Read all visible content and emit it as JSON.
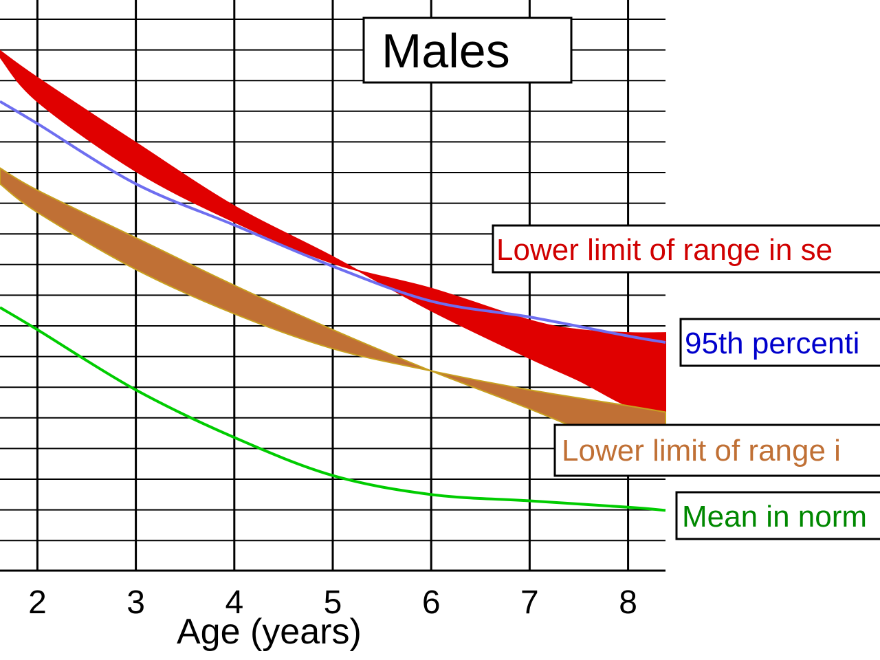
{
  "chart_data": {
    "type": "area",
    "title": "Males",
    "xlabel": "Age (years)",
    "ylabel": "",
    "xlim": [
      1.62,
      8.38
    ],
    "ylim": [
      0,
      18
    ],
    "x_ticks": [
      2,
      3,
      4,
      5,
      6,
      7,
      8
    ],
    "x_tick_labels": [
      "2",
      "3",
      "4",
      "5",
      "6",
      "7",
      "8"
    ],
    "grid": true,
    "bands": [
      {
        "name": "Lower limit of range in se",
        "color": "#e00000",
        "upper": {
          "x": [
            1.62,
            2,
            3,
            4,
            5,
            6,
            7,
            7.5,
            8,
            8.38
          ],
          "y": [
            16.4,
            15.55,
            13.5,
            11.5,
            9.9,
            8.2,
            6.7,
            6.0,
            5.2,
            5.0
          ]
        },
        "lower": {
          "x": [
            1.62,
            2,
            3,
            4,
            5,
            6,
            7,
            7.5,
            8,
            8.38
          ],
          "y": [
            16.2,
            14.8,
            12.6,
            11.0,
            9.7,
            8.9,
            7.9,
            7.6,
            7.5,
            7.5
          ]
        }
      },
      {
        "name": "Lower limit of range i",
        "color": "#c07035",
        "upper": {
          "x": [
            1.62,
            2,
            3,
            4,
            5,
            6,
            7,
            8,
            8.38
          ],
          "y": [
            12.7,
            12.0,
            10.5,
            9.0,
            7.6,
            6.3,
            5.1,
            3.8,
            3.3
          ]
        },
        "lower": {
          "x": [
            1.62,
            2,
            3,
            4,
            5,
            6,
            7,
            8,
            8.38
          ],
          "y": [
            12.2,
            11.3,
            9.5,
            8.1,
            7.0,
            6.3,
            5.7,
            5.2,
            5.0
          ]
        }
      }
    ],
    "series": [
      {
        "name": "95th percenti",
        "color": "#6e6ef0",
        "x": [
          1.62,
          2,
          3,
          4,
          5,
          6,
          7,
          8,
          8.38
        ],
        "y": [
          14.8,
          14.1,
          12.2,
          10.9,
          9.6,
          8.5,
          8.0,
          7.4,
          7.2
        ]
      },
      {
        "name": "Mean in norm",
        "color": "#00cc00",
        "x": [
          1.62,
          2,
          3,
          4,
          5,
          6,
          7,
          8,
          8.38
        ],
        "y": [
          8.3,
          7.6,
          5.7,
          4.2,
          3.0,
          2.4,
          2.2,
          2.0,
          1.9
        ]
      }
    ]
  },
  "legend": {
    "band_red": {
      "label": "Lower limit of range in se",
      "color": "#d00000"
    },
    "line_blue": {
      "label": "95th percenti",
      "color": "#0000cc"
    },
    "band_orange": {
      "label": "Lower limit of range i",
      "color": "#c07035"
    },
    "line_green": {
      "label": "Mean in norm",
      "color": "#008800"
    }
  }
}
